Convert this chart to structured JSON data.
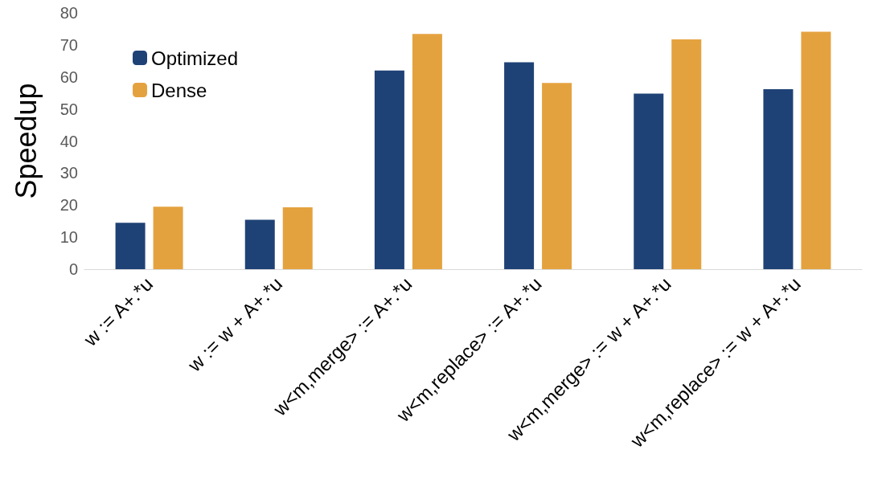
{
  "chart_data": {
    "type": "bar",
    "ylabel": "Speedup",
    "categories": [
      "w := A+.*u",
      "w := w + A+.*u",
      "w<m,merge> := A+.*u",
      "w<m,replace> := A+.*u",
      "w<m,merge> := w + A+.*u",
      "w<m,replace> := w + A+.*u"
    ],
    "series": [
      {
        "name": "Optimized",
        "color": "#1f4276",
        "values": [
          14.5,
          15.4,
          62,
          64.6,
          54.8,
          56.2
        ]
      },
      {
        "name": "Dense",
        "color": "#e4a23f",
        "values": [
          19.5,
          19.3,
          73.4,
          58.1,
          71.7,
          74.1
        ]
      }
    ],
    "ylim": [
      0,
      80
    ],
    "yticks": [
      0,
      10,
      20,
      30,
      40,
      50,
      60,
      70,
      80
    ],
    "grid": false,
    "legend": "top left"
  }
}
